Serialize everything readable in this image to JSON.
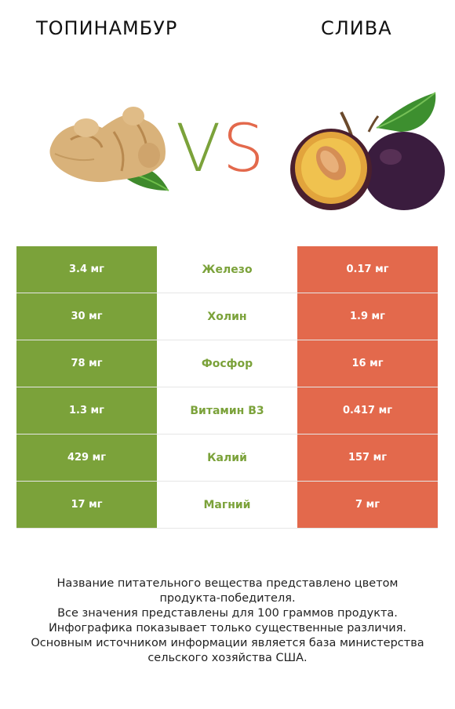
{
  "header": {
    "left_food": "ТОПИНАМБУР",
    "right_food": "СЛИВА",
    "vs_v": "V",
    "vs_s": "S"
  },
  "colors": {
    "left": "#7ba23a",
    "right": "#e3694c",
    "nutrient_text": "#7ba23a"
  },
  "chart_data": {
    "type": "table",
    "columns": [
      "Топинамбур",
      "",
      "Слива"
    ],
    "rows": [
      {
        "left": "3.4 мг",
        "nutrient": "Железо",
        "right": "0.17 мг",
        "winner": "left"
      },
      {
        "left": "30 мг",
        "nutrient": "Холин",
        "right": "1.9 мг",
        "winner": "left"
      },
      {
        "left": "78 мг",
        "nutrient": "Фосфор",
        "right": "16 мг",
        "winner": "left"
      },
      {
        "left": "1.3 мг",
        "nutrient": "Витамин B3",
        "right": "0.417 мг",
        "winner": "left"
      },
      {
        "left": "429 мг",
        "nutrient": "Калий",
        "right": "157 мг",
        "winner": "left"
      },
      {
        "left": "17 мг",
        "nutrient": "Магний",
        "right": "7 мг",
        "winner": "left"
      }
    ]
  },
  "footnote": {
    "lines": [
      "Название питательного вещества представлено цветом",
      "продукта-победителя.",
      "Все значения представлены для 100 граммов продукта.",
      "Инфографика показывает только существенные различия.",
      "Основным источником информации является база министерства",
      "сельского хозяйства США."
    ]
  }
}
